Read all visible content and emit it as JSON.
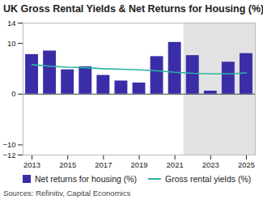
{
  "chart_data": {
    "type": "bar",
    "title": "UK Gross Rental Yields & Net Returns for Housing (%)",
    "source": "Sources: Refinitiv, Capital Economics",
    "x": [
      2013,
      2014,
      2015,
      2016,
      2017,
      2018,
      2019,
      2020,
      2021,
      2022,
      2023,
      2024,
      2025
    ],
    "xlim": [
      2012.5,
      2025.5
    ],
    "xticks": [
      2013,
      2015,
      2017,
      2019,
      2021,
      2023,
      2025
    ],
    "ylim": [
      -12,
      14
    ],
    "yticks": [
      -12,
      -10,
      0,
      10,
      14
    ],
    "grid": false,
    "legend": "bottom",
    "shaded_from": 2021.5,
    "series": [
      {
        "name": "Net returns for housing (%)",
        "type": "bar",
        "color": "#3a2ea8",
        "values": [
          7.8,
          8.5,
          4.8,
          5.4,
          3.7,
          2.6,
          2.2,
          7.4,
          10.2,
          7.6,
          0.6,
          6.3,
          8.0
        ]
      },
      {
        "name": "Gross rental yields (%)",
        "type": "line",
        "color": "#2bb3a3",
        "values": [
          5.8,
          5.5,
          5.3,
          5.2,
          5.0,
          4.9,
          4.8,
          4.6,
          4.3,
          4.1,
          4.0,
          4.0,
          4.2
        ]
      }
    ]
  }
}
